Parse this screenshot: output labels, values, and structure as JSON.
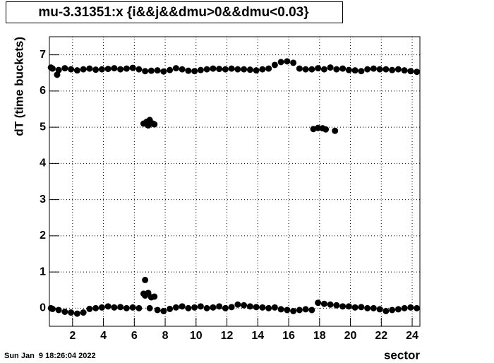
{
  "chart_data": {
    "type": "scatter",
    "title": "mu-3.31351:x {i&&j&&dmu>0&&dmu<0.03}",
    "x_label": "sector",
    "y_label": "dT (time buckets)",
    "timestamp": "Sun Jan  9 18:26:04 2022",
    "color": "#000000",
    "grid": true,
    "xlim": [
      0.5,
      24.5
    ],
    "ylim": [
      -0.5,
      7.5
    ],
    "xticks": [
      2,
      4,
      6,
      8,
      10,
      12,
      14,
      16,
      18,
      20,
      22,
      24
    ],
    "yticks": [
      0,
      1,
      2,
      3,
      4,
      5,
      6,
      7
    ],
    "x": [
      0.7,
      1.1,
      1.5,
      1.9,
      2.3,
      2.7,
      3.1,
      3.5,
      3.9,
      4.3,
      4.7,
      5.1,
      5.5,
      5.9,
      6.3,
      6.7,
      7.1,
      7.5,
      7.9,
      8.3,
      8.7,
      9.1,
      9.5,
      9.9,
      10.3,
      10.7,
      11.1,
      11.5,
      11.9,
      12.3,
      12.7,
      13.1,
      13.5,
      13.9,
      14.3,
      14.7,
      15.1,
      15.5,
      15.9,
      16.3,
      16.7,
      17.1,
      17.5,
      17.9,
      18.3,
      18.7,
      19.1,
      19.5,
      19.9,
      20.3,
      20.7,
      21.1,
      21.5,
      21.9,
      22.3,
      22.7,
      23.1,
      23.5,
      23.9,
      24.3,
      0.7,
      1.1,
      1.5,
      1.9,
      2.3,
      2.7,
      3.1,
      3.5,
      3.9,
      4.3,
      4.7,
      5.1,
      5.5,
      5.9,
      6.3,
      6.7,
      7.1,
      7.5,
      7.9,
      8.3,
      8.7,
      9.1,
      9.5,
      9.9,
      10.3,
      10.7,
      11.1,
      11.5,
      11.9,
      12.3,
      12.7,
      13.1,
      13.5,
      13.9,
      14.3,
      14.7,
      15.1,
      15.5,
      15.9,
      16.3,
      16.7,
      17.1,
      17.5,
      17.9,
      18.3,
      18.7,
      19.1,
      19.5,
      19.9,
      20.3,
      20.7,
      21.1,
      21.5,
      21.9,
      22.3,
      22.7,
      23.1,
      23.5,
      23.9,
      24.3,
      6.7,
      6.6,
      6.9,
      7.3,
      7.0,
      0.6,
      6.6,
      6.8,
      7.0,
      7.2,
      6.9,
      7.3,
      17.6,
      17.9,
      18.2,
      18.4,
      19.0,
      1.0,
      0.6
    ],
    "y": [
      6.62,
      6.58,
      6.63,
      6.6,
      6.57,
      6.6,
      6.62,
      6.59,
      6.6,
      6.61,
      6.63,
      6.6,
      6.62,
      6.64,
      6.6,
      6.55,
      6.56,
      6.57,
      6.54,
      6.58,
      6.63,
      6.6,
      6.56,
      6.55,
      6.58,
      6.6,
      6.62,
      6.61,
      6.6,
      6.62,
      6.6,
      6.6,
      6.59,
      6.57,
      6.6,
      6.62,
      6.72,
      6.8,
      6.82,
      6.78,
      6.62,
      6.6,
      6.6,
      6.63,
      6.6,
      6.65,
      6.6,
      6.62,
      6.58,
      6.57,
      6.55,
      6.6,
      6.62,
      6.6,
      6.6,
      6.58,
      6.6,
      6.57,
      6.55,
      6.53,
      -0.02,
      -0.05,
      -0.1,
      -0.12,
      -0.15,
      -0.12,
      -0.02,
      0.0,
      0.02,
      0.05,
      0.02,
      0.03,
      0.0,
      0.02,
      0.0,
      0.35,
      0.3,
      -0.05,
      -0.08,
      -0.02,
      0.02,
      0.05,
      0.0,
      0.02,
      0.05,
      0.0,
      0.02,
      0.05,
      0.0,
      0.03,
      0.1,
      0.08,
      0.05,
      0.03,
      0.02,
      0.0,
      0.02,
      -0.03,
      -0.05,
      -0.08,
      -0.05,
      -0.03,
      -0.05,
      0.15,
      0.12,
      0.1,
      0.08,
      0.05,
      0.05,
      0.02,
      0.03,
      0.0,
      0.0,
      -0.03,
      -0.08,
      -0.05,
      -0.03,
      0.0,
      0.02,
      0.0,
      0.78,
      0.4,
      0.42,
      0.32,
      0.0,
      0.0,
      5.1,
      5.15,
      5.2,
      5.1,
      5.05,
      5.08,
      4.95,
      4.98,
      4.97,
      4.94,
      4.9,
      6.45,
      6.65
    ]
  }
}
